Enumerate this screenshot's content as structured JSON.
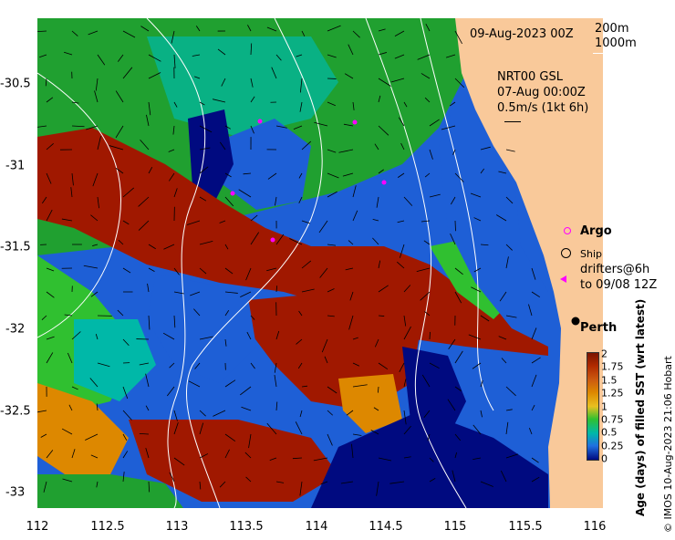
{
  "header": {
    "date": "09-Aug-2023 00Z",
    "depth1": "200m",
    "depth2": "1000m"
  },
  "currents": {
    "source": "NRT00 GSL",
    "date": "07-Aug 00:00Z",
    "scale": "0.5m/s (1kt 6h)"
  },
  "legend": {
    "argo": "Argo",
    "ship": "Ship",
    "drifters_line1": "drifters@6h",
    "drifters_line2": "to 09/08 12Z"
  },
  "place": {
    "perth": "Perth"
  },
  "colorbar": {
    "title": "Age (days) of filled SST (wrt latest)",
    "ticks": [
      "2",
      "1.75",
      "1.5",
      "1.25",
      "1",
      "0.75",
      "0.5",
      "0.25",
      "0"
    ]
  },
  "credit": "© IMOS 10-Aug-2023 21:06 Hobart",
  "axes": {
    "x_ticks": [
      "112",
      "112.5",
      "113",
      "113.5",
      "114",
      "114.5",
      "115",
      "115.5",
      "116"
    ],
    "y_ticks": [
      "-30.5",
      "-31",
      "-31.5",
      "-32",
      "-32.5",
      "-33"
    ]
  },
  "colors": {
    "land": "#f9c99a",
    "age_0": "#000a80",
    "age_025": "#1e5fd6",
    "age_05": "#00b8a8",
    "age_075": "#20a030",
    "age_1": "#30c030",
    "age_15": "#dd8800",
    "age_2": "#a01800",
    "argo": "#ff00ff"
  }
}
